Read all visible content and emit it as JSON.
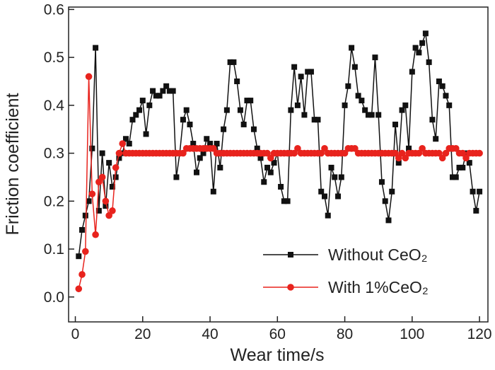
{
  "chart_data": {
    "type": "line",
    "xlabel": "Wear time/s",
    "ylabel": "Friction coefficient",
    "xlim": [
      -2,
      122.5
    ],
    "ylim": [
      -0.052,
      0.605
    ],
    "xticks": [
      0,
      20,
      40,
      60,
      80,
      100,
      120
    ],
    "yticks": [
      {
        "value": 0,
        "label": "0.0"
      },
      0.1,
      0.2,
      0.3,
      0.4,
      0.5,
      0.6
    ],
    "legend": "lower right",
    "x": [
      1,
      2,
      3,
      4,
      5,
      6,
      7,
      8,
      9,
      10,
      11,
      12,
      13,
      14,
      15,
      16,
      17,
      18,
      19,
      20,
      21,
      22,
      23,
      24,
      25,
      26,
      27,
      28,
      29,
      30,
      31,
      32,
      33,
      34,
      35,
      36,
      37,
      38,
      39,
      40,
      41,
      42,
      43,
      44,
      45,
      46,
      47,
      48,
      49,
      50,
      51,
      52,
      53,
      54,
      55,
      56,
      57,
      58,
      59,
      60,
      61,
      62,
      63,
      64,
      65,
      66,
      67,
      68,
      69,
      70,
      71,
      72,
      73,
      74,
      75,
      76,
      77,
      78,
      79,
      80,
      81,
      82,
      83,
      84,
      85,
      86,
      87,
      88,
      89,
      90,
      91,
      92,
      93,
      94,
      95,
      96,
      97,
      98,
      99,
      100,
      101,
      102,
      103,
      104,
      105,
      106,
      107,
      108,
      109,
      110,
      111,
      112,
      113,
      114,
      115,
      116,
      117,
      118,
      119,
      120
    ],
    "series": [
      {
        "name": "Without CeO₂",
        "color": "#111111",
        "marker": "square",
        "values": [
          0.085,
          0.14,
          0.17,
          0.2,
          0.31,
          0.52,
          0.18,
          0.3,
          0.19,
          0.28,
          0.23,
          0.25,
          0.29,
          0.3,
          0.33,
          0.32,
          0.37,
          0.38,
          0.39,
          0.41,
          0.34,
          0.4,
          0.43,
          0.42,
          0.42,
          0.43,
          0.44,
          0.43,
          0.43,
          0.25,
          0.3,
          0.37,
          0.39,
          0.36,
          0.32,
          0.26,
          0.29,
          0.3,
          0.33,
          0.32,
          0.22,
          0.32,
          0.27,
          0.35,
          0.39,
          0.49,
          0.49,
          0.45,
          0.39,
          0.36,
          0.41,
          0.41,
          0.35,
          0.31,
          0.29,
          0.24,
          0.27,
          0.26,
          0.28,
          0.3,
          0.23,
          0.2,
          0.2,
          0.39,
          0.48,
          0.4,
          0.46,
          0.38,
          0.47,
          0.47,
          0.37,
          0.37,
          0.22,
          0.21,
          0.17,
          0.27,
          0.25,
          0.21,
          0.25,
          0.4,
          0.44,
          0.52,
          0.48,
          0.42,
          0.41,
          0.39,
          0.38,
          0.38,
          0.5,
          0.38,
          0.24,
          0.2,
          0.16,
          0.22,
          0.36,
          0.28,
          0.39,
          0.4,
          0.31,
          0.47,
          0.52,
          0.51,
          0.53,
          0.55,
          0.49,
          0.37,
          0.33,
          0.45,
          0.44,
          0.42,
          0.4,
          0.25,
          0.25,
          0.27,
          0.27,
          0.3,
          0.28,
          0.22,
          0.18,
          0.22
        ]
      },
      {
        "name": "With 1%CeO₂",
        "color": "#e8231d",
        "marker": "circle",
        "values": [
          0.017,
          0.047,
          0.095,
          0.46,
          0.215,
          0.13,
          0.24,
          0.25,
          0.2,
          0.17,
          0.18,
          0.27,
          0.3,
          0.32,
          0.3,
          0.3,
          0.3,
          0.3,
          0.3,
          0.3,
          0.3,
          0.3,
          0.3,
          0.3,
          0.3,
          0.3,
          0.3,
          0.3,
          0.3,
          0.3,
          0.3,
          0.3,
          0.31,
          0.31,
          0.31,
          0.31,
          0.31,
          0.31,
          0.31,
          0.31,
          0.31,
          0.3,
          0.3,
          0.3,
          0.3,
          0.3,
          0.3,
          0.3,
          0.3,
          0.3,
          0.3,
          0.3,
          0.3,
          0.3,
          0.3,
          0.3,
          0.3,
          0.29,
          0.3,
          0.3,
          0.3,
          0.3,
          0.3,
          0.3,
          0.3,
          0.31,
          0.3,
          0.3,
          0.3,
          0.3,
          0.3,
          0.3,
          0.3,
          0.31,
          0.3,
          0.3,
          0.3,
          0.3,
          0.3,
          0.3,
          0.31,
          0.31,
          0.31,
          0.3,
          0.3,
          0.3,
          0.3,
          0.3,
          0.3,
          0.3,
          0.3,
          0.3,
          0.3,
          0.3,
          0.3,
          0.29,
          0.3,
          0.29,
          0.3,
          0.3,
          0.3,
          0.3,
          0.31,
          0.3,
          0.3,
          0.3,
          0.3,
          0.3,
          0.29,
          0.3,
          0.31,
          0.31,
          0.31,
          0.3,
          0.3,
          0.29,
          0.3,
          0.3,
          0.3,
          0.3
        ]
      }
    ]
  }
}
